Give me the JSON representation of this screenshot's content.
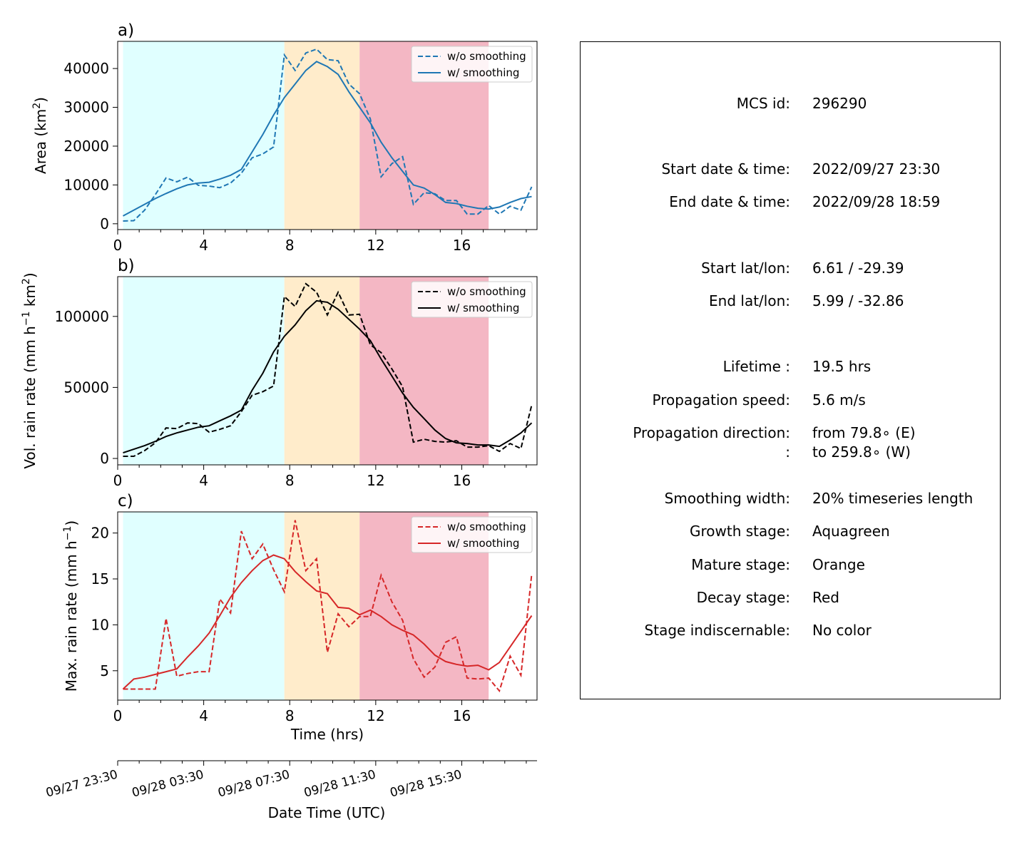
{
  "chart_data": {
    "type": "line",
    "shared_x": {
      "label": "Time (hrs)",
      "lim": [
        0,
        19.5
      ],
      "ticks": [
        0,
        4,
        8,
        12,
        16
      ]
    },
    "date_axis": {
      "label": "Date Time (UTC)",
      "tick_labels": [
        "09/27 23:30",
        "09/28 03:30",
        "09/28 07:30",
        "09/28 11:30",
        "09/28 15:30"
      ]
    },
    "stage_spans": [
      {
        "stage": "growth",
        "color": "#e0ffff",
        "x": [
          0.25,
          7.75
        ]
      },
      {
        "stage": "mature",
        "color": "#ffeccb",
        "x": [
          7.75,
          11.25
        ]
      },
      {
        "stage": "decay",
        "color": "#f4b7c4",
        "x": [
          11.25,
          17.25
        ]
      }
    ],
    "panels": [
      {
        "label": "a)",
        "ylabel": "Area  (km",
        "ylabel_sup": "2",
        "ylabel_end": ")",
        "ylim": [
          -1500,
          47000
        ],
        "yticks": [
          0,
          10000,
          20000,
          30000,
          40000
        ],
        "color": "#1f77b4",
        "legend": [
          "w/o smoothing",
          "w/ smoothing"
        ],
        "x": [
          0.25,
          0.75,
          1.25,
          1.75,
          2.25,
          2.75,
          3.25,
          3.75,
          4.25,
          4.75,
          5.25,
          5.75,
          6.25,
          6.75,
          7.25,
          7.75,
          8.25,
          8.75,
          9.25,
          9.75,
          10.25,
          10.75,
          11.25,
          11.75,
          12.25,
          12.75,
          13.25,
          13.75,
          14.25,
          14.75,
          15.25,
          15.75,
          16.25,
          16.75,
          17.25,
          17.75,
          18.25,
          18.75,
          19.25
        ],
        "raw": [
          700,
          800,
          3500,
          7500,
          11800,
          10800,
          12000,
          9900,
          9700,
          9300,
          10500,
          13000,
          17000,
          18000,
          19800,
          43500,
          39500,
          44000,
          45000,
          42300,
          42000,
          36000,
          33500,
          27000,
          12100,
          15500,
          17300,
          5000,
          8000,
          7700,
          6000,
          6000,
          2500,
          2500,
          4700,
          2500,
          4500,
          3500,
          9500
        ],
        "smoothed": [
          2000,
          3500,
          5000,
          6500,
          7800,
          9000,
          10000,
          10500,
          10700,
          11500,
          12500,
          14000,
          18500,
          23000,
          28000,
          32500,
          36000,
          39500,
          41800,
          40500,
          38500,
          34000,
          30000,
          26000,
          21000,
          17000,
          13500,
          10000,
          9200,
          7500,
          5500,
          5200,
          4500,
          4000,
          3800,
          4300,
          5500,
          6500,
          7000
        ]
      },
      {
        "label": "b)",
        "ylabel": "Vol. rain rate (mm h",
        "ylabel_sup": "−1",
        "ylabel_end": " km",
        "ylabel_sup2": "2",
        "ylabel_end2": ")",
        "ylim": [
          -4500,
          128000
        ],
        "yticks": [
          0,
          50000,
          100000
        ],
        "color": "#000000",
        "legend": [
          "w/o smoothing",
          "w/ smoothing"
        ],
        "x": [
          0.25,
          0.75,
          1.25,
          1.75,
          2.25,
          2.75,
          3.25,
          3.75,
          4.25,
          4.75,
          5.25,
          5.75,
          6.25,
          6.75,
          7.25,
          7.75,
          8.25,
          8.75,
          9.25,
          9.75,
          10.25,
          10.75,
          11.25,
          11.75,
          12.25,
          12.75,
          13.25,
          13.75,
          14.25,
          14.75,
          15.25,
          15.75,
          16.25,
          16.75,
          17.25,
          17.75,
          18.25,
          18.75,
          19.25
        ],
        "raw": [
          1500,
          1500,
          5500,
          11000,
          21500,
          21000,
          25000,
          24500,
          18500,
          20500,
          23000,
          33000,
          44500,
          47000,
          51000,
          114000,
          107000,
          123000,
          117000,
          101000,
          117000,
          101000,
          101500,
          80000,
          74500,
          63000,
          50500,
          11500,
          13500,
          12000,
          11500,
          12500,
          8000,
          8000,
          9000,
          5000,
          10500,
          7000,
          37500
        ],
        "smoothed": [
          4000,
          6500,
          9000,
          12000,
          15500,
          18000,
          20000,
          22000,
          23000,
          26500,
          30000,
          34000,
          48000,
          60000,
          75000,
          86000,
          94000,
          104000,
          111000,
          110000,
          105000,
          98000,
          91000,
          83000,
          70000,
          58000,
          46000,
          36000,
          28000,
          20000,
          14000,
          11000,
          10500,
          9500,
          9500,
          8500,
          13000,
          18000,
          25000
        ]
      },
      {
        "label": "c)",
        "ylabel": "Max. rain rate  (mm h",
        "ylabel_sup": "−1",
        "ylabel_end": ")",
        "ylim": [
          1.8,
          22.3
        ],
        "yticks": [
          5,
          10,
          15,
          20
        ],
        "color": "#d62728",
        "legend": [
          "w/o smoothing",
          "w/ smoothing"
        ],
        "x": [
          0.25,
          0.75,
          1.25,
          1.75,
          2.25,
          2.75,
          3.25,
          3.75,
          4.25,
          4.75,
          5.25,
          5.75,
          6.25,
          6.75,
          7.25,
          7.75,
          8.25,
          8.75,
          9.25,
          9.75,
          10.25,
          10.75,
          11.25,
          11.75,
          12.25,
          12.75,
          13.25,
          13.75,
          14.25,
          14.75,
          15.25,
          15.75,
          16.25,
          16.75,
          17.25,
          17.75,
          18.25,
          18.75,
          19.25
        ],
        "raw": [
          3.0,
          3.0,
          3.0,
          3.0,
          10.7,
          4.4,
          4.7,
          4.9,
          4.9,
          12.8,
          11.3,
          20.2,
          17.2,
          18.8,
          16.0,
          13.6,
          21.4,
          15.9,
          17.2,
          7.0,
          11.2,
          9.8,
          10.9,
          10.9,
          15.4,
          12.5,
          10.5,
          6.3,
          4.3,
          5.4,
          8.1,
          8.7,
          4.2,
          4.1,
          4.2,
          2.8,
          6.6,
          4.5,
          15.5
        ],
        "smoothed": [
          3.0,
          4.1,
          4.3,
          4.6,
          4.9,
          5.2,
          6.5,
          7.7,
          9.1,
          11.0,
          13.0,
          14.6,
          15.9,
          17.0,
          17.6,
          17.2,
          15.8,
          14.7,
          13.7,
          13.4,
          11.9,
          11.8,
          11.1,
          11.6,
          10.9,
          10.0,
          9.4,
          8.9,
          7.9,
          6.7,
          6.0,
          5.7,
          5.5,
          5.6,
          5.1,
          5.9,
          7.6,
          9.3,
          11.0
        ]
      }
    ]
  },
  "info": {
    "rows": [
      {
        "key": "MCS id:",
        "value": "296290"
      },
      {
        "key": "Start date & time:",
        "value": "2022/09/27 23:30"
      },
      {
        "key": "End date & time:",
        "value": "2022/09/28 18:59"
      },
      {
        "key": "Start lat/lon:",
        "value": "6.61 / -29.39"
      },
      {
        "key": "End lat/lon:",
        "value": "5.99 / -32.86"
      },
      {
        "key": "Lifetime :",
        "value": "19.5 hrs"
      },
      {
        "key": "Propagation speed:",
        "value": "5.6 m/s"
      },
      {
        "key": "Propagation direction:",
        "value": "from  79.8∘ (E)"
      },
      {
        "key": ":",
        "value": "to   259.8∘ (W)"
      },
      {
        "key": "Smoothing width:",
        "value": "20% timeseries length"
      },
      {
        "key": "Growth stage:",
        "value": "Aquagreen"
      },
      {
        "key": "Mature stage:",
        "value": "Orange"
      },
      {
        "key": "Decay stage:",
        "value": "Red"
      },
      {
        "key": "Stage indiscernable:",
        "value": "No color"
      }
    ]
  }
}
